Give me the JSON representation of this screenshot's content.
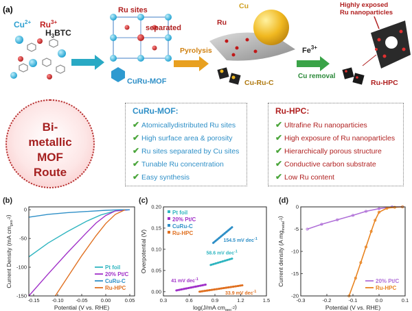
{
  "panel_a": {
    "label": "(a)",
    "cu_ion": "Cu",
    "cu_ion_charge": "2+",
    "ru_ion": "Ru",
    "ru_ion_charge": "3+",
    "linker": "H",
    "linker_sub": "3",
    "linker_rest": "BTC",
    "ru_sites": "Ru sites",
    "separated": "separated",
    "mof_cu": "CuRu-",
    "mof_rest": "MOF",
    "pyrolysis": "Pyrolysis",
    "ru_label": "Ru",
    "cu_label": "Cu",
    "cu_ru_c": "Cu-Ru-C",
    "fe_ion": "Fe",
    "fe_charge": "3+",
    "cu_removal": "Cu removal",
    "highly_exposed_1": "Highly exposed",
    "highly_exposed_2": "Ru nanoparticles",
    "ru_hpc": "Ru-HPC"
  },
  "route": {
    "lines": [
      "Bi-",
      "metallic",
      "MOF",
      "Route"
    ]
  },
  "mof_box": {
    "title": "CuRu-MOF:",
    "items": [
      "Atomicallydistributed Ru sites",
      "High surface area & porosity",
      "Ru sites separated by Cu sites",
      "Tunable Ru concentration",
      "Easy synthesis"
    ]
  },
  "hpc_box": {
    "title": "Ru-HPC:",
    "items": [
      "Ultrafine Ru nanoparticies",
      "High exposure of Ru nanoparticles",
      "Hierarchically porous structure",
      "Conductive carbon substrate",
      "Low Ru content"
    ]
  },
  "colors": {
    "cyan": "#2fb5c0",
    "purple": "#a030c8",
    "blue": "#2e8fc7",
    "orange": "#e07020",
    "arrow_blue": "#29a9c4",
    "arrow_orange": "#e8a020",
    "arrow_green": "#3aa348",
    "red_dark": "#b02020",
    "check": "#4aa53a"
  },
  "chart_data": [
    {
      "type": "line",
      "label": "(b)",
      "xlabel": "Potential (V vs. RHE)",
      "ylabel": "Current Density (mA cm",
      "ylabel_sub": "geo",
      "ylabel_sup": "-2",
      "ylabel_end": ")",
      "xlim": [
        -0.16,
        0.06
      ],
      "ylim": [
        -150,
        5
      ],
      "xticks": [
        "-0.15",
        "-0.10",
        "-0.05",
        "0.00",
        "0.05"
      ],
      "xtick_values": [
        -0.15,
        -0.1,
        -0.05,
        0.0,
        0.05
      ],
      "yticks": [
        "0",
        "-50",
        "-100",
        "-150"
      ],
      "ytick_values": [
        0,
        -50,
        -100,
        -150
      ],
      "legend": "bottom-right",
      "series": [
        {
          "name": "Pt foil",
          "color": "#2fb5c0",
          "x": [
            -0.16,
            -0.12,
            -0.08,
            -0.04,
            -0.01,
            0.02,
            0.05
          ],
          "y": [
            -82,
            -58,
            -38,
            -20,
            -9,
            -2,
            0
          ]
        },
        {
          "name": "20% Pt/C",
          "color": "#a030c8",
          "x": [
            -0.16,
            -0.12,
            -0.08,
            -0.04,
            -0.02,
            0.0,
            0.02,
            0.05
          ],
          "y": [
            -150,
            -112,
            -75,
            -40,
            -23,
            -10,
            -2,
            0
          ]
        },
        {
          "name": "CuRu-C",
          "color": "#2e8fc7",
          "x": [
            -0.16,
            -0.12,
            -0.08,
            -0.04,
            0.0,
            0.03,
            0.05
          ],
          "y": [
            -13,
            -8,
            -5,
            -3,
            -1,
            0,
            0
          ]
        },
        {
          "name": "Ru-HPC",
          "color": "#e07020",
          "x": [
            -0.105,
            -0.08,
            -0.05,
            -0.02,
            0.0,
            0.02,
            0.04
          ],
          "y": [
            -150,
            -118,
            -80,
            -45,
            -24,
            -8,
            0
          ]
        }
      ]
    },
    {
      "type": "line",
      "label": "(c)",
      "xlabel": "log(J/mA  cm",
      "xlabel_sub": "geo",
      "xlabel_sup": "-2",
      "xlabel_end": ")",
      "ylabel": "Overpotential (V)",
      "xlim": [
        0.3,
        1.5
      ],
      "ylim": [
        -0.01,
        0.2
      ],
      "xticks": [
        "0.3",
        "0.6",
        "0.9",
        "1.2",
        "1.5"
      ],
      "xtick_values": [
        0.3,
        0.6,
        0.9,
        1.2,
        1.5
      ],
      "yticks": [
        "0.00",
        "0.05",
        "0.10",
        "0.15",
        "0.20"
      ],
      "ytick_values": [
        0.0,
        0.05,
        0.1,
        0.15,
        0.2
      ],
      "legend": "top-left",
      "series": [
        {
          "name": "Pt foil",
          "color": "#2fb5c0",
          "x": [
            0.85,
            1.1
          ],
          "y": [
            0.063,
            0.078
          ]
        },
        {
          "name": "20% Pt/C",
          "color": "#a030c8",
          "x": [
            0.45,
            0.8
          ],
          "y": [
            0.003,
            0.017
          ]
        },
        {
          "name": "CuRu-C",
          "color": "#2e8fc7",
          "x": [
            0.88,
            1.1
          ],
          "y": [
            0.115,
            0.152
          ]
        },
        {
          "name": "Ru-HPC",
          "color": "#e07020",
          "x": [
            0.72,
            1.22
          ],
          "y": [
            0.0,
            0.015
          ]
        }
      ],
      "annotations": [
        {
          "text": "154.5 mV dec",
          "sup": "-1",
          "x": 1.0,
          "y": 0.118,
          "color": "#2e8fc7"
        },
        {
          "text": "58.6 mV dec",
          "sup": "-1",
          "x": 0.8,
          "y": 0.088,
          "color": "#2fb5c0"
        },
        {
          "text": "41 mV dec",
          "sup": "-1",
          "x": 0.39,
          "y": 0.022,
          "color": "#a030c8"
        },
        {
          "text": "33.9 mV dec",
          "sup": "-1",
          "x": 1.02,
          "y": -0.007,
          "color": "#e07020"
        }
      ]
    },
    {
      "type": "line",
      "label": "(d)",
      "xlabel": "Potential (V vs. RHE)",
      "ylabel": "Current density (A mg",
      "ylabel_sub": "metal",
      "ylabel_sup": "-1",
      "ylabel_end": ")",
      "xlim": [
        -0.3,
        0.1
      ],
      "ylim": [
        -20,
        0
      ],
      "xticks": [
        "-0.3",
        "-0.2",
        "-0.1",
        "0.0",
        "0.1"
      ],
      "xtick_values": [
        -0.3,
        -0.2,
        -0.1,
        0.0,
        0.1
      ],
      "yticks": [
        "0",
        "-5",
        "-10",
        "-15",
        "-20"
      ],
      "ytick_values": [
        0,
        -5,
        -10,
        -15,
        -20
      ],
      "legend": "bottom-right",
      "series": [
        {
          "name": "20% Pt/C",
          "color": "#b070d8",
          "x": [
            -0.275,
            -0.22,
            -0.16,
            -0.1,
            -0.05,
            0.0,
            0.05,
            0.09
          ],
          "y": [
            -5.0,
            -3.9,
            -2.9,
            -1.9,
            -1.0,
            -0.4,
            0.0,
            0.0
          ]
        },
        {
          "name": "Ru-HPC",
          "color": "#e8821e",
          "x": [
            -0.115,
            -0.09,
            -0.07,
            -0.05,
            -0.03,
            -0.015,
            0.0,
            0.03,
            0.06,
            0.09
          ],
          "y": [
            -20,
            -16,
            -12.5,
            -9,
            -5.5,
            -3,
            -1.2,
            -0.3,
            -0.1,
            0.0
          ]
        }
      ]
    }
  ]
}
